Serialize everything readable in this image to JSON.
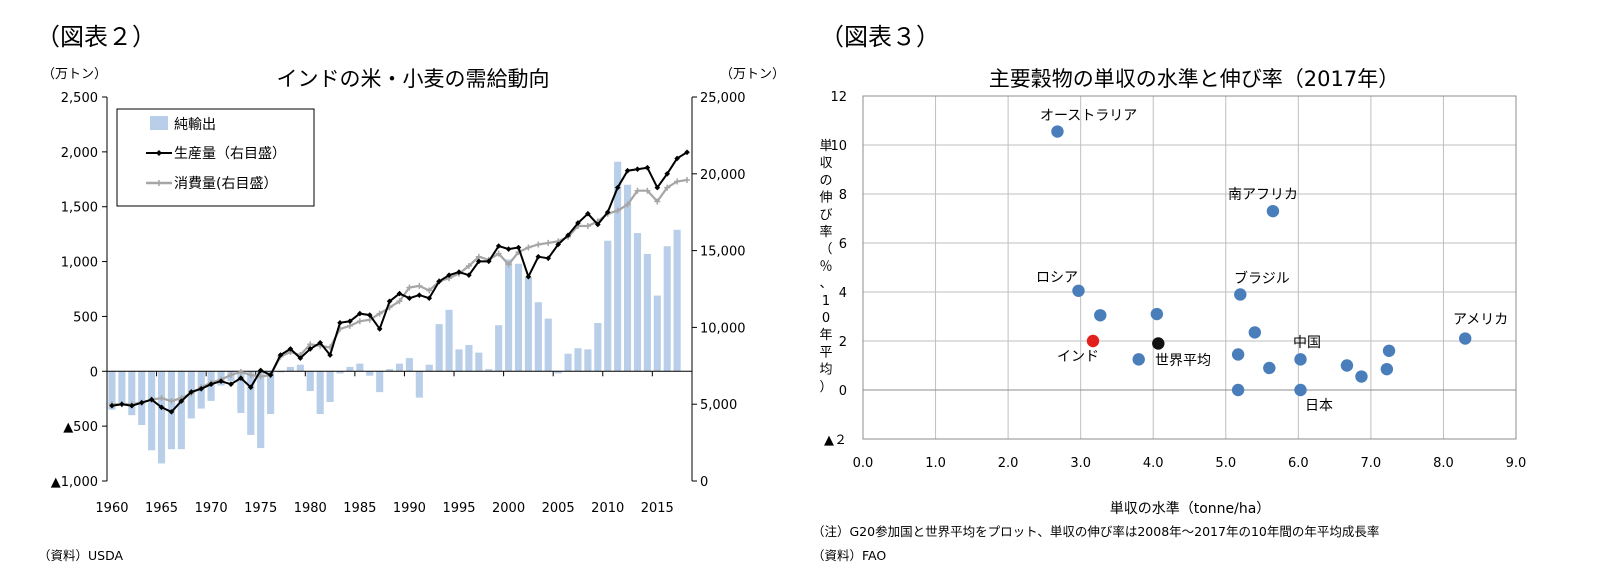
{
  "left": {
    "figure_label": "（図表２）",
    "source": "（資料）USDA",
    "chart_data": {
      "type": "bar+line",
      "title": "インドの米・小麦の需給動向",
      "left_unit": "（万トン）",
      "right_unit": "（万トン）",
      "ylim_left": [
        -1000,
        2500
      ],
      "ylim_right": [
        0,
        25000
      ],
      "yticks_left": [
        2500,
        2000,
        1500,
        1000,
        500,
        0,
        -500,
        -1000
      ],
      "yticks_left_labels": [
        "2,500",
        "2,000",
        "1,500",
        "1,000",
        "500",
        "0",
        "▲500",
        "▲1,000"
      ],
      "yticks_right": [
        25000,
        20000,
        15000,
        10000,
        5000,
        0
      ],
      "yticks_right_labels": [
        "25,000",
        "20,000",
        "15,000",
        "10,000",
        "5,000",
        "0"
      ],
      "x_tick_labels": [
        "1960",
        "1965",
        "1970",
        "1975",
        "1980",
        "1985",
        "1990",
        "1995",
        "2000",
        "2005",
        "2010",
        "2015"
      ],
      "x": [
        1960,
        1961,
        1962,
        1963,
        1964,
        1965,
        1966,
        1967,
        1968,
        1969,
        1970,
        1971,
        1972,
        1973,
        1974,
        1975,
        1976,
        1977,
        1978,
        1979,
        1980,
        1981,
        1982,
        1983,
        1984,
        1985,
        1986,
        1987,
        1988,
        1989,
        1990,
        1991,
        1992,
        1993,
        1994,
        1995,
        1996,
        1997,
        1998,
        1999,
        2000,
        2001,
        2002,
        2003,
        2004,
        2005,
        2006,
        2007,
        2008,
        2009,
        2010,
        2011,
        2012,
        2013,
        2014,
        2015,
        2016,
        2017,
        2018
      ],
      "legend": [
        "純輸出",
        "生産量（右目盛）",
        "消費量(右目盛）"
      ],
      "series": [
        {
          "name": "純輸出",
          "type": "bar",
          "axis": "left",
          "color": "#b9cfe9",
          "values": [
            -350,
            -300,
            -400,
            -490,
            -720,
            -840,
            -710,
            -710,
            -430,
            -340,
            -270,
            -130,
            -90,
            -380,
            -580,
            -700,
            -390,
            -10,
            40,
            60,
            -180,
            -390,
            -280,
            -20,
            40,
            70,
            -40,
            -190,
            20,
            70,
            120,
            -240,
            60,
            430,
            560,
            200,
            240,
            170,
            20,
            420,
            1020,
            980,
            860,
            630,
            480,
            -20,
            160,
            210,
            200,
            440,
            1190,
            1910,
            1700,
            1260,
            1070,
            690,
            1140,
            1290,
            0
          ]
        },
        {
          "name": "生産量（右目盛）",
          "type": "line",
          "axis": "right",
          "color": "#000000",
          "values": [
            4900,
            5000,
            4900,
            5100,
            5300,
            4800,
            4500,
            5200,
            5800,
            6000,
            6300,
            6500,
            6300,
            6700,
            6100,
            7200,
            6900,
            8200,
            8600,
            8000,
            8600,
            9000,
            8200,
            10300,
            10400,
            10900,
            10800,
            9900,
            11700,
            12200,
            11900,
            12100,
            11900,
            13000,
            13400,
            13600,
            13400,
            14300,
            14300,
            15300,
            15100,
            15200,
            13300,
            14600,
            14500,
            15400,
            16000,
            16800,
            17400,
            16700,
            17500,
            19100,
            20200,
            20300,
            20400,
            19100,
            20000,
            21000,
            21400
          ]
        },
        {
          "name": "消費量(右目盛）",
          "type": "line",
          "axis": "right",
          "color": "#a6a6a6",
          "values": [
            5000,
            5000,
            5000,
            5100,
            5300,
            5400,
            5200,
            5400,
            5700,
            6100,
            6400,
            6600,
            6900,
            7100,
            6900,
            6800,
            6900,
            8100,
            8400,
            8200,
            8900,
            8800,
            8700,
            9900,
            10100,
            10400,
            10500,
            10900,
            11300,
            11700,
            12600,
            12700,
            12400,
            13000,
            13200,
            13500,
            14000,
            14600,
            14400,
            14800,
            14100,
            14900,
            15200,
            15400,
            15500,
            15600,
            15900,
            16600,
            16600,
            16900,
            17400,
            17600,
            18000,
            18900,
            18900,
            18200,
            19100,
            19500,
            19600
          ]
        }
      ]
    }
  },
  "right": {
    "figure_label": "（図表３）",
    "note": "（注）G20参加国と世界平均をプロット、単収の伸び率は2008年～2017年の10年間の年平均成長率",
    "source": "（資料）FAO",
    "chart_data": {
      "type": "scatter",
      "title": "主要穀物の単収の水準と伸び率（2017年）",
      "xlabel": "単収の水準（tonne/ha）",
      "ylabel": "単収の伸び率（％、10年平均）",
      "xlim": [
        0,
        9
      ],
      "ylim": [
        -2,
        12
      ],
      "x_tick_labels": [
        "0.0",
        "1.0",
        "2.0",
        "3.0",
        "4.0",
        "5.0",
        "6.0",
        "7.0",
        "8.0",
        "9.0"
      ],
      "y_tick_labels": [
        "12",
        "10",
        "8",
        "6",
        "4",
        "2",
        "0",
        "▲２"
      ],
      "points": [
        {
          "x": 2.68,
          "y": 10.55,
          "label": "オーストラリア",
          "color": "#4a7ebb"
        },
        {
          "x": 5.65,
          "y": 7.3,
          "label": "南アフリカ",
          "color": "#4a7ebb"
        },
        {
          "x": 2.97,
          "y": 4.05,
          "label": "ロシア",
          "color": "#4a7ebb"
        },
        {
          "x": 5.2,
          "y": 3.9,
          "label": "ブラジル",
          "color": "#4a7ebb"
        },
        {
          "x": 8.3,
          "y": 2.1,
          "label": "アメリカ",
          "color": "#4a7ebb"
        },
        {
          "x": 6.03,
          "y": 1.25,
          "label": "中国",
          "color": "#4a7ebb"
        },
        {
          "x": 6.03,
          "y": 0.0,
          "label": "日本",
          "color": "#4a7ebb"
        },
        {
          "x": 3.17,
          "y": 2.0,
          "label": "インド",
          "color": "#e3211c"
        },
        {
          "x": 4.07,
          "y": 1.9,
          "label": "世界平均",
          "color": "#111111"
        },
        {
          "x": 3.27,
          "y": 3.05,
          "label": "",
          "color": "#4a7ebb"
        },
        {
          "x": 4.05,
          "y": 3.1,
          "label": "",
          "color": "#4a7ebb"
        },
        {
          "x": 3.8,
          "y": 1.25,
          "label": "",
          "color": "#4a7ebb"
        },
        {
          "x": 5.4,
          "y": 2.35,
          "label": "",
          "color": "#4a7ebb"
        },
        {
          "x": 5.17,
          "y": 1.45,
          "label": "",
          "color": "#4a7ebb"
        },
        {
          "x": 5.6,
          "y": 0.9,
          "label": "",
          "color": "#4a7ebb"
        },
        {
          "x": 5.17,
          "y": 0.0,
          "label": "",
          "color": "#4a7ebb"
        },
        {
          "x": 6.67,
          "y": 1.0,
          "label": "",
          "color": "#4a7ebb"
        },
        {
          "x": 6.87,
          "y": 0.55,
          "label": "",
          "color": "#4a7ebb"
        },
        {
          "x": 7.25,
          "y": 1.6,
          "label": "",
          "color": "#4a7ebb"
        },
        {
          "x": 7.22,
          "y": 0.85,
          "label": "",
          "color": "#4a7ebb"
        }
      ]
    }
  }
}
